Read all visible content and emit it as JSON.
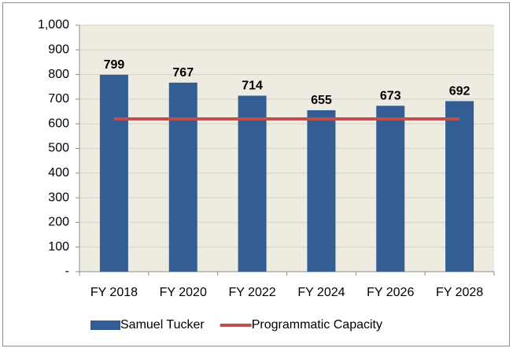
{
  "chart_data": {
    "type": "bar",
    "categories": [
      "FY 2018",
      "FY 2020",
      "FY 2022",
      "FY 2024",
      "FY 2026",
      "FY 2028"
    ],
    "series": [
      {
        "name": "Samuel Tucker",
        "type": "bar",
        "color": "#335d93",
        "data_labels": true,
        "values": [
          799,
          767,
          714,
          655,
          673,
          692
        ]
      },
      {
        "name": "Programmatic Capacity",
        "type": "line",
        "color": "#c0504d",
        "values": [
          620,
          620,
          620,
          620,
          620,
          620
        ]
      }
    ],
    "ylim": [
      0,
      1000
    ],
    "yticks": [
      {
        "value": 0,
        "label": "-"
      },
      100,
      200,
      300,
      400,
      500,
      600,
      700,
      800,
      900,
      {
        "value": 1000,
        "label": "1,000"
      }
    ],
    "grid": true,
    "legend": "bottom"
  }
}
